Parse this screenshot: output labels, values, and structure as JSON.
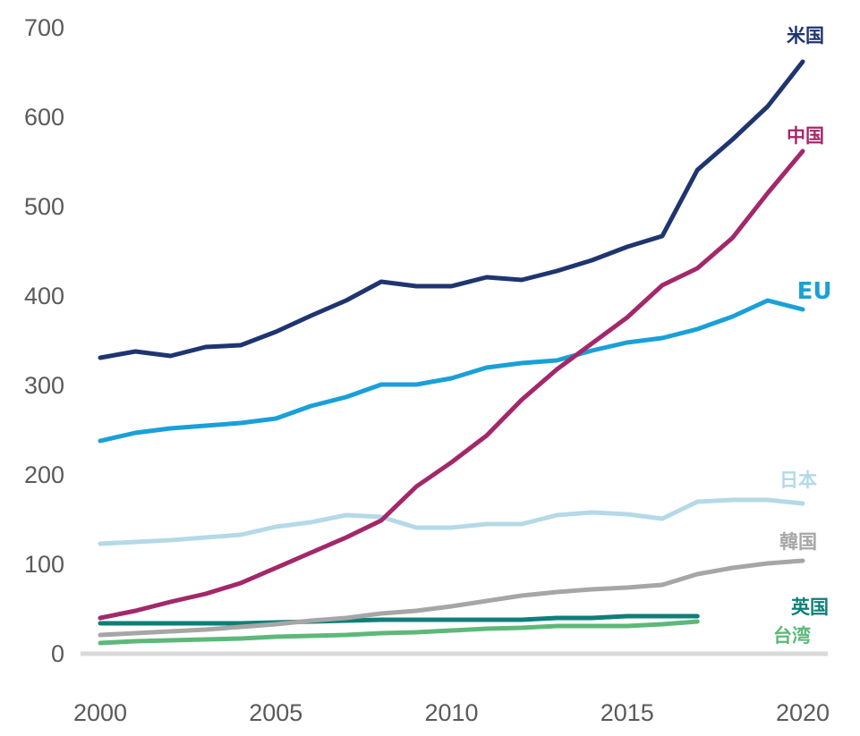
{
  "chart_data": {
    "type": "line",
    "title": "",
    "xlabel": "",
    "ylabel": "",
    "xlim": [
      2000,
      2020
    ],
    "ylim": [
      0,
      700
    ],
    "x_ticks": [
      2000,
      2005,
      2010,
      2015,
      2020
    ],
    "y_ticks": [
      0,
      100,
      200,
      300,
      400,
      500,
      600,
      700
    ],
    "grid": false,
    "series": [
      {
        "name": "米国",
        "color": "#1f3570",
        "x": [
          2000,
          2001,
          2002,
          2003,
          2004,
          2005,
          2006,
          2007,
          2008,
          2009,
          2010,
          2011,
          2012,
          2013,
          2014,
          2015,
          2016,
          2017,
          2018,
          2019,
          2020
        ],
        "values": [
          331,
          338,
          333,
          343,
          345,
          360,
          378,
          395,
          416,
          411,
          411,
          421,
          418,
          428,
          440,
          455,
          467,
          541,
          575,
          612,
          662
        ]
      },
      {
        "name": "中国",
        "color": "#a3286a",
        "x": [
          2000,
          2001,
          2002,
          2003,
          2004,
          2005,
          2006,
          2007,
          2008,
          2009,
          2010,
          2011,
          2012,
          2013,
          2014,
          2015,
          2016,
          2017,
          2018,
          2019,
          2020
        ],
        "values": [
          40,
          48,
          58,
          67,
          79,
          96,
          113,
          130,
          149,
          187,
          214,
          244,
          284,
          318,
          347,
          376,
          412,
          431,
          465,
          515,
          562
        ]
      },
      {
        "name": "EU",
        "color": "#1aa0d8",
        "x": [
          2000,
          2001,
          2002,
          2003,
          2004,
          2005,
          2006,
          2007,
          2008,
          2009,
          2010,
          2011,
          2012,
          2013,
          2014,
          2015,
          2016,
          2017,
          2018,
          2019,
          2020
        ],
        "values": [
          238,
          247,
          252,
          255,
          258,
          263,
          277,
          287,
          301,
          301,
          308,
          320,
          325,
          328,
          339,
          348,
          353,
          363,
          377,
          395,
          385
        ]
      },
      {
        "name": "日本",
        "color": "#b4d9e8",
        "x": [
          2000,
          2001,
          2002,
          2003,
          2004,
          2005,
          2006,
          2007,
          2008,
          2009,
          2010,
          2011,
          2012,
          2013,
          2014,
          2015,
          2016,
          2017,
          2018,
          2019,
          2020
        ],
        "values": [
          123,
          125,
          127,
          130,
          133,
          142,
          147,
          155,
          153,
          141,
          141,
          145,
          145,
          155,
          158,
          156,
          151,
          170,
          172,
          172,
          168
        ]
      },
      {
        "name": "韓国",
        "color": "#a6a6a6",
        "x": [
          2000,
          2001,
          2002,
          2003,
          2004,
          2005,
          2006,
          2007,
          2008,
          2009,
          2010,
          2011,
          2012,
          2013,
          2014,
          2015,
          2016,
          2017,
          2018,
          2019,
          2020
        ],
        "values": [
          21,
          23,
          25,
          27,
          30,
          33,
          37,
          40,
          45,
          48,
          53,
          59,
          65,
          69,
          72,
          74,
          77,
          89,
          96,
          101,
          104
        ]
      },
      {
        "name": "英国",
        "color": "#0e7f78",
        "x": [
          2000,
          2001,
          2002,
          2003,
          2004,
          2005,
          2006,
          2007,
          2008,
          2009,
          2010,
          2011,
          2012,
          2013,
          2014,
          2015,
          2016,
          2017
        ],
        "values": [
          34,
          34,
          34,
          34,
          34,
          35,
          36,
          37,
          38,
          38,
          38,
          38,
          38,
          40,
          40,
          42,
          42,
          42
        ]
      },
      {
        "name": "台湾",
        "color": "#5db87a",
        "x": [
          2000,
          2001,
          2002,
          2003,
          2004,
          2005,
          2006,
          2007,
          2008,
          2009,
          2010,
          2011,
          2012,
          2013,
          2014,
          2015,
          2016,
          2017
        ],
        "values": [
          12,
          14,
          15,
          16,
          17,
          19,
          20,
          21,
          23,
          24,
          26,
          28,
          29,
          31,
          31,
          31,
          33,
          36
        ]
      }
    ]
  }
}
